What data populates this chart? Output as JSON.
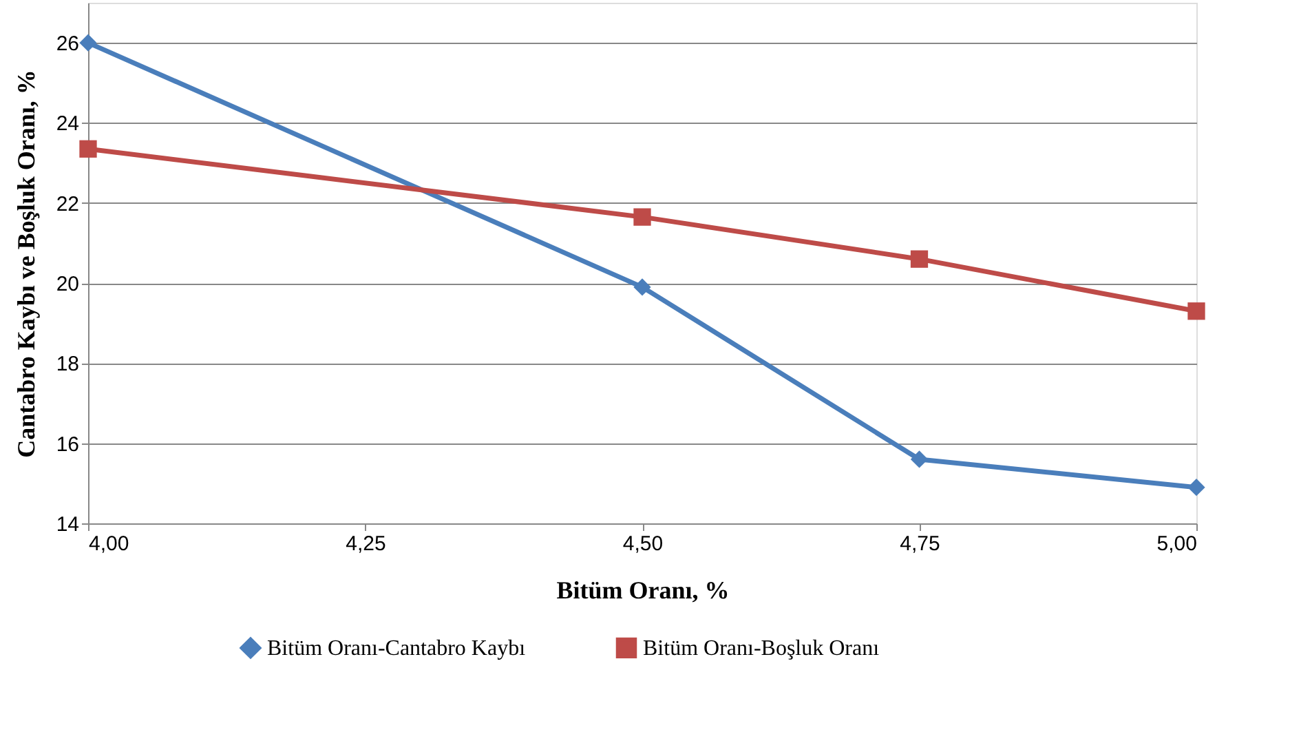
{
  "chart_data": {
    "type": "line",
    "xlabel": "Bitüm Oranı, %",
    "ylabel": "Cantabro Kaybı ve Boşluk Oranı, %",
    "x": [
      4.0,
      4.5,
      4.75,
      5.0
    ],
    "series": [
      {
        "name": "Bitüm Oranı-Cantabro Kaybı",
        "color": "#4a7ebb",
        "marker": "diamond",
        "values": [
          26.0,
          19.9,
          15.6,
          14.9
        ]
      },
      {
        "name": "Bitüm Oranı-Boşluk Oranı",
        "color": "#be4b48",
        "marker": "square",
        "values": [
          23.35,
          21.65,
          20.6,
          19.3
        ]
      }
    ],
    "xlim": [
      4.0,
      5.0
    ],
    "xticks": [
      {
        "value": 4.0,
        "label": "4,00"
      },
      {
        "value": 4.25,
        "label": "4,25"
      },
      {
        "value": 4.5,
        "label": "4,50"
      },
      {
        "value": 4.75,
        "label": "4,75"
      },
      {
        "value": 5.0,
        "label": "5,00"
      }
    ],
    "ylim": [
      14,
      27
    ],
    "yticks": [
      14,
      16,
      18,
      20,
      22,
      24,
      26
    ],
    "grid": "y",
    "legend": "bottom",
    "line_style": "solid"
  }
}
